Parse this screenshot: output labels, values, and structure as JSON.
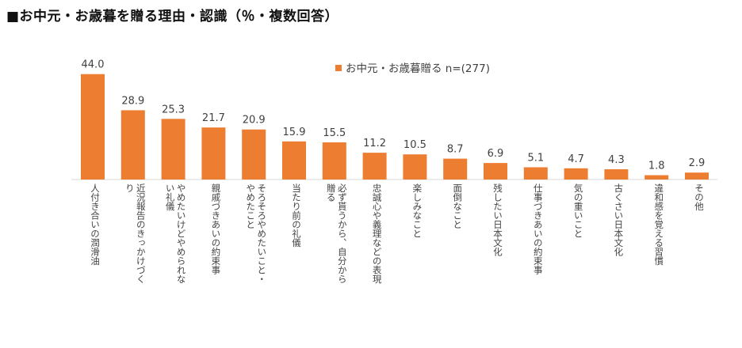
{
  "chart_data": {
    "type": "bar",
    "title": "■お中元・お歳暮を贈る理由・認識（％・複数回答）",
    "legend": "お中元・お歳暮贈る n=(277)",
    "legend_position": "top-right",
    "bar_color": "#ED7D31",
    "ylim": [
      0,
      50
    ],
    "grid": false,
    "categories": [
      [
        "人付き合いの潤滑油"
      ],
      [
        "近況報告のきっかけづく",
        "り"
      ],
      [
        "やめたいけどやめられな",
        "い礼儀"
      ],
      [
        "親戚づきあいの約束事"
      ],
      [
        "そろそろやめたいこと・",
        "やめたこと"
      ],
      [
        "当たり前の礼儀"
      ],
      [
        "必ず貰うから、自分から",
        "贈る"
      ],
      [
        "忠誠心や義理などの表現"
      ],
      [
        "楽しみなこと"
      ],
      [
        "面倒なこと"
      ],
      [
        "残したい日本文化"
      ],
      [
        "仕事づきあいの約束事"
      ],
      [
        "気の重いこと"
      ],
      [
        "古くさい日本文化"
      ],
      [
        "違和感を覚える習慣"
      ],
      [
        "その他"
      ]
    ],
    "values": [
      "44.0",
      "28.9",
      "25.3",
      "21.7",
      "20.9",
      "15.9",
      "15.5",
      "11.2",
      "10.5",
      "8.7",
      "6.9",
      "5.1",
      "4.7",
      "4.3",
      "1.8",
      "2.9"
    ]
  }
}
